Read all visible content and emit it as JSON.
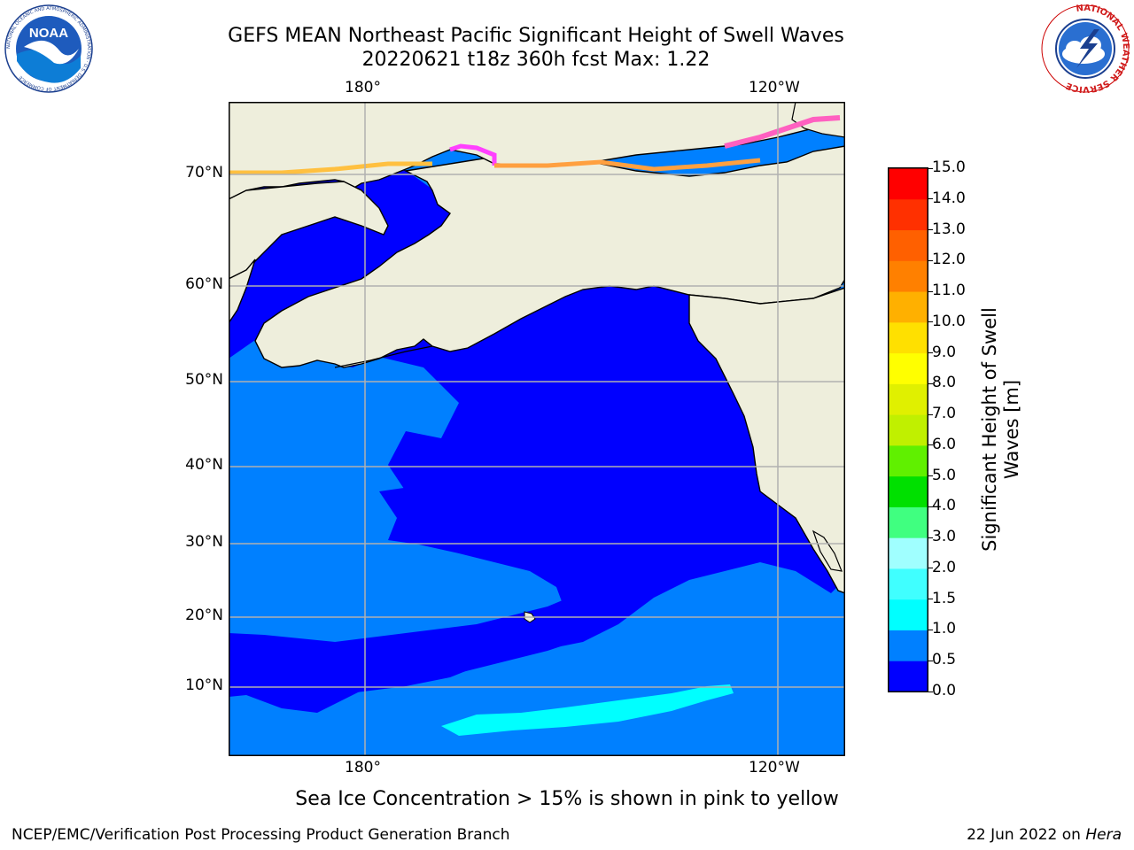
{
  "header": {
    "title_line1": "GEFS MEAN Northeast Pacific Significant Height of Swell Waves",
    "title_line2": "20220621 t18z 360h fcst   Max: 1.22"
  },
  "logos": {
    "noaa": {
      "text": "NOAA",
      "ring_text": "NATIONAL OCEANIC AND ATMOSPHERIC ADMINISTRATION · U.S. DEPARTMENT OF COMMERCE"
    },
    "nws": {
      "ring_text": "NATIONAL WEATHER SERVICE"
    }
  },
  "map": {
    "lon_ticks": [
      "180°",
      "120°W"
    ],
    "lat_ticks": [
      "70°N",
      "60°N",
      "50°N",
      "40°N",
      "30°N",
      "20°N",
      "10°N"
    ],
    "colors": {
      "land": "#eeeedc",
      "grid": "#b0b0b0",
      "ocean_low": "#0000ff",
      "ocean_mid": "#0080ff",
      "ocean_high": "#00ffff",
      "ice_edge": "#ff40ff",
      "ice_fill": "#ffa040"
    }
  },
  "colorbar": {
    "label": "Significant Height of Swell Waves [m]",
    "tick_labels": [
      "0.0",
      "0.5",
      "1.0",
      "1.5",
      "2.0",
      "3.0",
      "4.0",
      "5.0",
      "6.0",
      "7.0",
      "8.0",
      "9.0",
      "10.0",
      "11.0",
      "12.0",
      "13.0",
      "14.0",
      "15.0"
    ],
    "colors": [
      "#0000ff",
      "#0080ff",
      "#00ffff",
      "#40ffff",
      "#a0ffff",
      "#40ff80",
      "#00e000",
      "#60f000",
      "#c0f000",
      "#e0f000",
      "#ffff00",
      "#ffe000",
      "#ffb000",
      "#ff8000",
      "#ff6000",
      "#ff3000",
      "#ff0000"
    ]
  },
  "footer": {
    "caption": "Sea Ice Concentration > 15% is shown in pink to yellow",
    "credit": "NCEP/EMC/Verification Post Processing Product Generation Branch",
    "date": "22 Jun 2022 on ",
    "host": "Hera"
  }
}
